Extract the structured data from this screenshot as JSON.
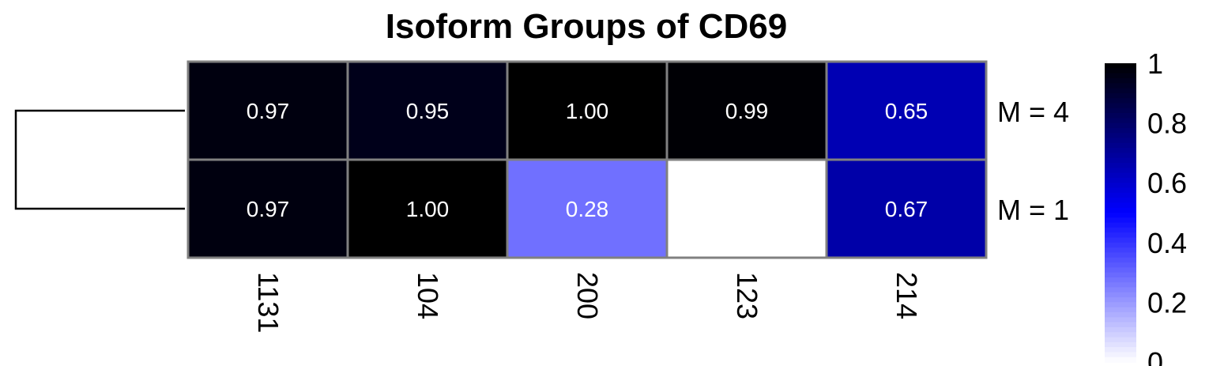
{
  "chart_data": {
    "type": "heatmap",
    "title": "Isoform Groups of CD69",
    "columns": [
      "1131",
      "104",
      "200",
      "123",
      "214"
    ],
    "rows": [
      "M = 4",
      "M = 1"
    ],
    "values": [
      [
        0.97,
        0.95,
        1.0,
        0.99,
        0.65
      ],
      [
        0.97,
        1.0,
        0.28,
        null,
        0.67
      ]
    ],
    "cell_labels": [
      [
        "0.97",
        "0.95",
        "1.00",
        "0.99",
        "0.65"
      ],
      [
        "0.97",
        "1.00",
        "0.28",
        "",
        "0.67"
      ]
    ],
    "color_scale": {
      "min": 0,
      "max": 1,
      "stops": [
        {
          "value": 0,
          "color": "#ffffff"
        },
        {
          "value": 0.5,
          "color": "#0000ff"
        },
        {
          "value": 1,
          "color": "#000000"
        }
      ],
      "ticks": [
        "0",
        "0.2",
        "0.4",
        "0.6",
        "0.8",
        "1"
      ]
    },
    "cell_border_color": "#808080",
    "dendrogram": "rows",
    "legend_position": "right"
  }
}
